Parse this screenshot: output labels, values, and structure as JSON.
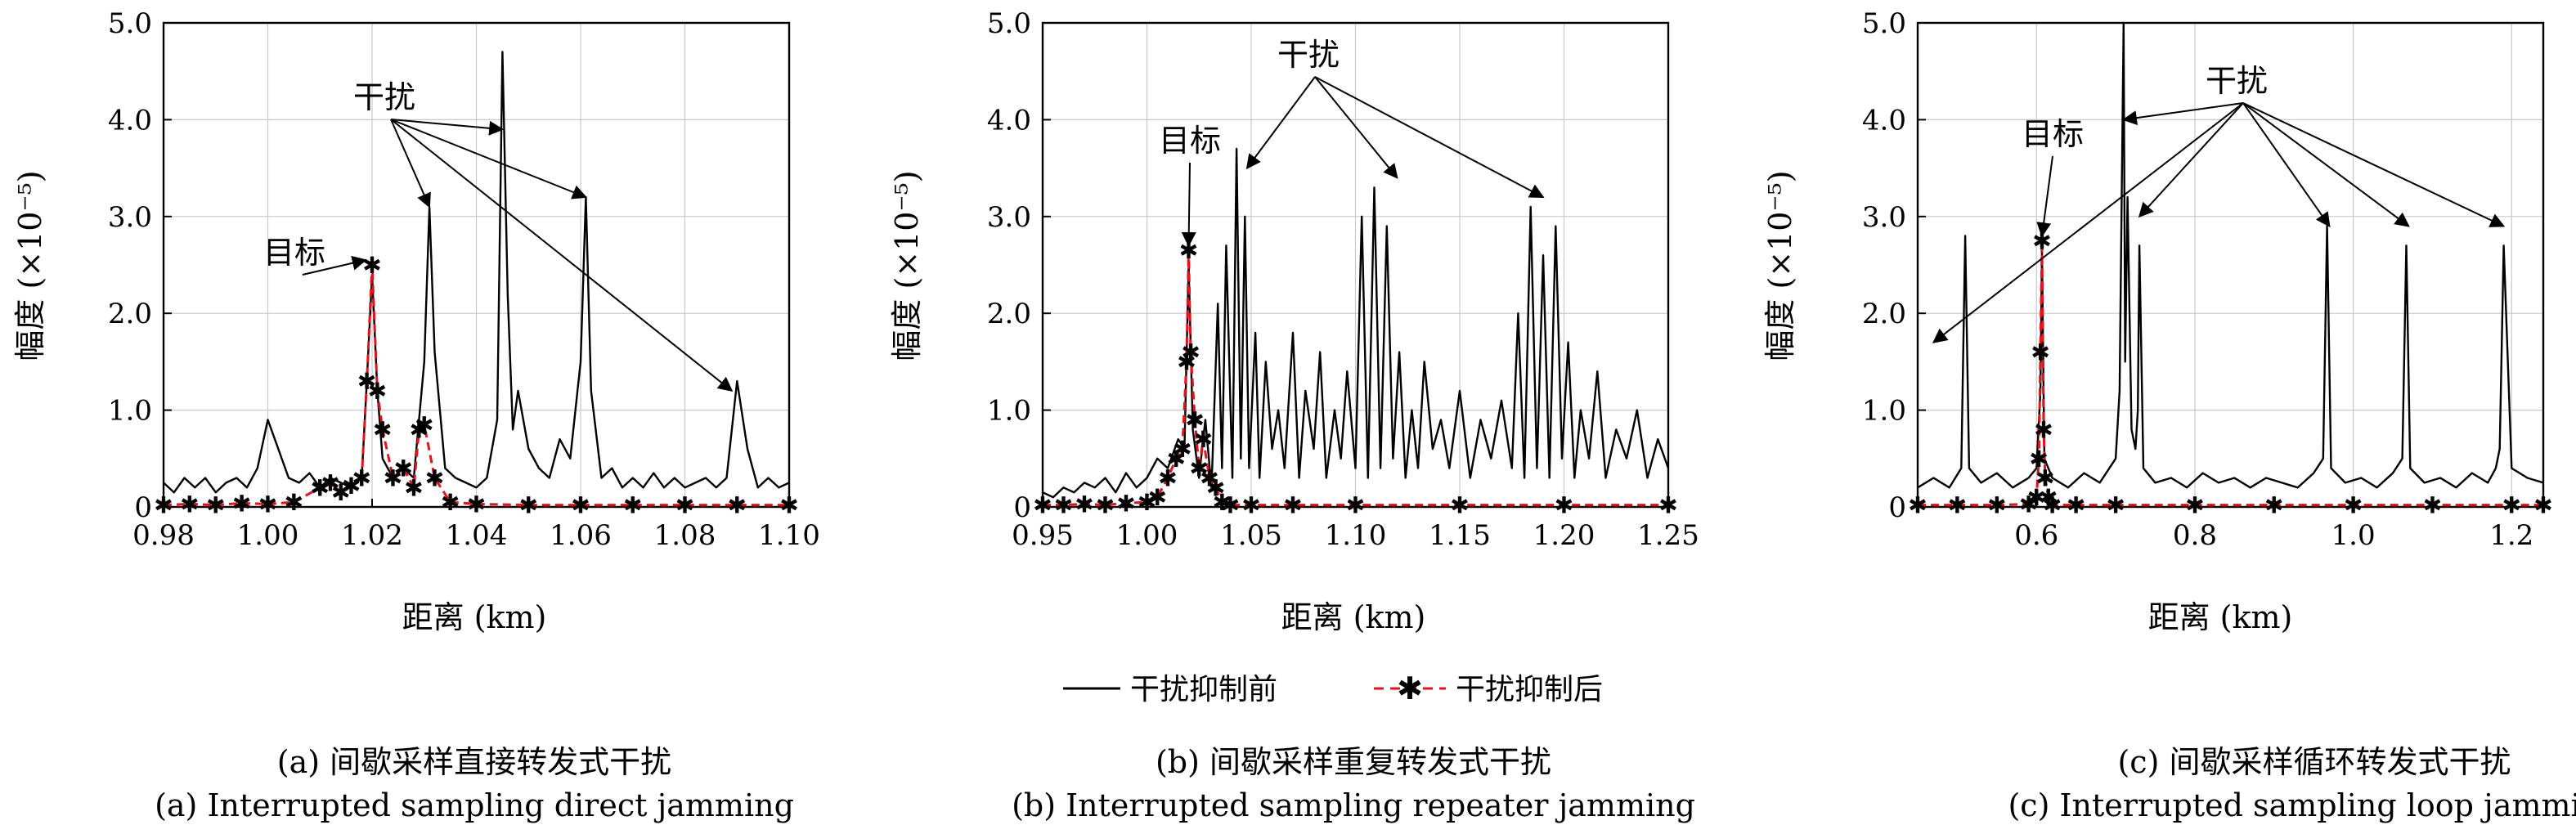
{
  "legend": {
    "before_label": "干扰抑制前",
    "after_label": "干扰抑制后"
  },
  "colors": {
    "before": "#000000",
    "after": "#e8101b",
    "after_marker": "#e8101b"
  },
  "chart_data": [
    {
      "type": "line",
      "panel": "a",
      "caption_cn": "(a) 间歇采样直接转发式干扰",
      "caption_en": "(a) Interrupted sampling direct jamming",
      "xlabel": "距离 (km)",
      "ylabel": "幅度 (×10⁻⁵)",
      "xlim": [
        0.98,
        1.1
      ],
      "ylim": [
        0,
        5.0
      ],
      "xticks": [
        0.98,
        1.0,
        1.02,
        1.04,
        1.06,
        1.08,
        1.1
      ],
      "xtick_labels": [
        "0.98",
        "1.00",
        "1.02",
        "1.04",
        "1.06",
        "1.08",
        "1.10"
      ],
      "yticks": [
        0,
        1.0,
        2.0,
        3.0,
        4.0,
        5.0
      ],
      "ytick_labels": [
        "0",
        "1.0",
        "2.0",
        "3.0",
        "4.0",
        "5.0"
      ],
      "grid": true,
      "annotations": [
        {
          "text": "目标",
          "points_to": [
            1.02,
            2.5
          ]
        },
        {
          "text": "干扰",
          "points_to": [
            [
              1.031,
              3.1
            ],
            [
              1.045,
              3.9
            ],
            [
              1.061,
              3.2
            ],
            [
              1.089,
              1.2
            ]
          ]
        }
      ],
      "series": [
        {
          "name": "干扰抑制前",
          "x": [
            0.98,
            0.982,
            0.984,
            0.986,
            0.988,
            0.99,
            0.992,
            0.994,
            0.996,
            0.998,
            1.0,
            1.002,
            1.004,
            1.006,
            1.008,
            1.01,
            1.012,
            1.014,
            1.016,
            1.018,
            1.019,
            1.02,
            1.021,
            1.022,
            1.024,
            1.026,
            1.028,
            1.03,
            1.031,
            1.032,
            1.034,
            1.036,
            1.038,
            1.04,
            1.042,
            1.044,
            1.045,
            1.046,
            1.047,
            1.048,
            1.05,
            1.052,
            1.054,
            1.056,
            1.058,
            1.06,
            1.061,
            1.062,
            1.064,
            1.066,
            1.068,
            1.07,
            1.072,
            1.074,
            1.076,
            1.078,
            1.08,
            1.082,
            1.084,
            1.086,
            1.088,
            1.09,
            1.092,
            1.094,
            1.096,
            1.098,
            1.1
          ],
          "y": [
            0.25,
            0.15,
            0.3,
            0.2,
            0.3,
            0.15,
            0.25,
            0.3,
            0.2,
            0.4,
            0.9,
            0.6,
            0.3,
            0.25,
            0.35,
            0.2,
            0.3,
            0.25,
            0.2,
            0.3,
            1.3,
            2.4,
            1.2,
            0.5,
            0.3,
            0.4,
            0.3,
            1.5,
            3.1,
            1.6,
            0.4,
            0.3,
            0.25,
            0.2,
            0.3,
            0.9,
            4.7,
            2.2,
            0.8,
            1.2,
            0.6,
            0.4,
            0.3,
            0.7,
            0.5,
            1.5,
            3.2,
            1.2,
            0.3,
            0.4,
            0.2,
            0.3,
            0.2,
            0.35,
            0.2,
            0.3,
            0.2,
            0.25,
            0.3,
            0.2,
            0.3,
            1.3,
            0.6,
            0.2,
            0.3,
            0.2,
            0.25
          ]
        },
        {
          "name": "干扰抑制后",
          "x": [
            0.98,
            0.985,
            0.99,
            0.995,
            1.0,
            1.005,
            1.01,
            1.012,
            1.014,
            1.016,
            1.018,
            1.019,
            1.02,
            1.021,
            1.022,
            1.024,
            1.026,
            1.028,
            1.029,
            1.03,
            1.032,
            1.035,
            1.04,
            1.05,
            1.06,
            1.07,
            1.08,
            1.09,
            1.1
          ],
          "y": [
            0.02,
            0.03,
            0.02,
            0.04,
            0.03,
            0.05,
            0.2,
            0.25,
            0.15,
            0.22,
            0.3,
            1.3,
            2.5,
            1.2,
            0.8,
            0.3,
            0.4,
            0.2,
            0.8,
            0.85,
            0.3,
            0.05,
            0.03,
            0.02,
            0.02,
            0.02,
            0.02,
            0.02,
            0.02
          ]
        }
      ]
    },
    {
      "type": "line",
      "panel": "b",
      "caption_cn": "(b) 间歇采样重复转发式干扰",
      "caption_en": "(b) Interrupted sampling repeater jamming",
      "xlabel": "距离 (km)",
      "ylabel": "幅度 (×10⁻⁵)",
      "xlim": [
        0.95,
        1.25
      ],
      "ylim": [
        0,
        5.0
      ],
      "xticks": [
        0.95,
        1.0,
        1.05,
        1.1,
        1.15,
        1.2,
        1.25
      ],
      "xtick_labels": [
        "0.95",
        "1.00",
        "1.05",
        "1.10",
        "1.15",
        "1.20",
        "1.25"
      ],
      "yticks": [
        0,
        1.0,
        2.0,
        3.0,
        4.0,
        5.0
      ],
      "ytick_labels": [
        "0",
        "1.0",
        "2.0",
        "3.0",
        "4.0",
        "5.0"
      ],
      "grid": true,
      "annotations": [
        {
          "text": "目标",
          "points_to": [
            1.02,
            2.65
          ]
        },
        {
          "text": "干扰",
          "points_to": [
            [
              1.048,
              3.5
            ],
            [
              1.12,
              3.4
            ],
            [
              1.19,
              3.2
            ]
          ]
        }
      ],
      "series": [
        {
          "name": "干扰抑制前",
          "x": [
            0.95,
            0.955,
            0.96,
            0.965,
            0.97,
            0.975,
            0.98,
            0.985,
            0.99,
            0.995,
            1.0,
            1.005,
            1.01,
            1.015,
            1.018,
            1.02,
            1.022,
            1.025,
            1.028,
            1.031,
            1.034,
            1.036,
            1.038,
            1.041,
            1.043,
            1.045,
            1.047,
            1.049,
            1.052,
            1.054,
            1.057,
            1.06,
            1.063,
            1.066,
            1.07,
            1.073,
            1.076,
            1.08,
            1.083,
            1.086,
            1.09,
            1.093,
            1.096,
            1.1,
            1.103,
            1.106,
            1.109,
            1.112,
            1.115,
            1.118,
            1.121,
            1.124,
            1.127,
            1.13,
            1.133,
            1.137,
            1.141,
            1.145,
            1.15,
            1.155,
            1.16,
            1.165,
            1.17,
            1.175,
            1.178,
            1.181,
            1.184,
            1.187,
            1.19,
            1.193,
            1.196,
            1.199,
            1.202,
            1.205,
            1.208,
            1.212,
            1.216,
            1.22,
            1.225,
            1.23,
            1.235,
            1.24,
            1.245,
            1.25
          ],
          "y": [
            0.15,
            0.1,
            0.2,
            0.15,
            0.25,
            0.2,
            0.3,
            0.15,
            0.35,
            0.2,
            0.3,
            0.5,
            0.4,
            0.7,
            0.6,
            2.5,
            0.8,
            0.3,
            0.9,
            0.2,
            2.1,
            0.4,
            2.7,
            0.3,
            3.7,
            0.5,
            3.0,
            0.4,
            1.8,
            0.3,
            1.5,
            0.6,
            1.0,
            0.4,
            1.8,
            0.3,
            1.2,
            0.6,
            1.6,
            0.3,
            1.0,
            0.5,
            1.4,
            0.4,
            3.0,
            0.3,
            3.3,
            0.4,
            2.9,
            0.5,
            1.6,
            0.3,
            1.0,
            0.4,
            1.5,
            0.6,
            0.9,
            0.4,
            1.2,
            0.3,
            0.9,
            0.5,
            1.1,
            0.4,
            2.0,
            0.3,
            3.1,
            0.4,
            2.6,
            0.3,
            2.9,
            0.5,
            1.7,
            0.3,
            1.0,
            0.5,
            1.4,
            0.3,
            0.8,
            0.5,
            1.0,
            0.3,
            0.7,
            0.4
          ]
        },
        {
          "name": "干扰抑制后",
          "x": [
            0.95,
            0.96,
            0.97,
            0.98,
            0.99,
            1.0,
            1.005,
            1.01,
            1.014,
            1.017,
            1.019,
            1.02,
            1.021,
            1.023,
            1.025,
            1.027,
            1.03,
            1.033,
            1.036,
            1.04,
            1.05,
            1.07,
            1.1,
            1.15,
            1.2,
            1.25
          ],
          "y": [
            0.02,
            0.02,
            0.03,
            0.02,
            0.04,
            0.05,
            0.1,
            0.3,
            0.5,
            0.6,
            1.5,
            2.65,
            1.6,
            0.9,
            0.4,
            0.7,
            0.3,
            0.2,
            0.05,
            0.02,
            0.02,
            0.02,
            0.02,
            0.02,
            0.02,
            0.02
          ]
        }
      ]
    },
    {
      "type": "line",
      "panel": "c",
      "caption_cn": "(c) 间歇采样循环转发式干扰",
      "caption_en": "(c) Interrupted sampling loop jamming",
      "xlabel": "距离 (km)",
      "ylabel": "幅度 (×10⁻⁵)",
      "xlim": [
        0.45,
        1.24
      ],
      "ylim": [
        0,
        5.0
      ],
      "xticks": [
        0.6,
        0.8,
        1.0,
        1.2
      ],
      "xtick_labels": [
        "0.6",
        "0.8",
        "1.0",
        "1.2"
      ],
      "yticks": [
        0,
        1.0,
        2.0,
        3.0,
        4.0,
        5.0
      ],
      "ytick_labels": [
        "0",
        "1.0",
        "2.0",
        "3.0",
        "4.0",
        "5.0"
      ],
      "grid": true,
      "annotations": [
        {
          "text": "目标",
          "points_to": [
            0.607,
            2.75
          ]
        },
        {
          "text": "干扰",
          "points_to": [
            [
              0.47,
              1.7
            ],
            [
              0.71,
              4.0
            ],
            [
              0.73,
              3.0
            ],
            [
              0.97,
              2.9
            ],
            [
              1.07,
              2.9
            ],
            [
              1.19,
              2.9
            ]
          ]
        }
      ],
      "series": [
        {
          "name": "干扰抑制前",
          "x": [
            0.45,
            0.47,
            0.49,
            0.505,
            0.51,
            0.515,
            0.53,
            0.55,
            0.57,
            0.59,
            0.6,
            0.605,
            0.607,
            0.61,
            0.62,
            0.64,
            0.66,
            0.68,
            0.7,
            0.705,
            0.71,
            0.712,
            0.715,
            0.72,
            0.725,
            0.728,
            0.73,
            0.735,
            0.75,
            0.77,
            0.79,
            0.81,
            0.83,
            0.85,
            0.87,
            0.89,
            0.91,
            0.93,
            0.95,
            0.962,
            0.967,
            0.972,
            0.99,
            1.01,
            1.03,
            1.05,
            1.062,
            1.067,
            1.072,
            1.09,
            1.11,
            1.13,
            1.15,
            1.17,
            1.18,
            1.185,
            1.19,
            1.2,
            1.22,
            1.24
          ],
          "y": [
            0.2,
            0.3,
            0.2,
            0.4,
            2.8,
            0.4,
            0.25,
            0.35,
            0.2,
            0.3,
            0.4,
            1.2,
            2.65,
            0.5,
            0.3,
            0.2,
            0.35,
            0.25,
            0.5,
            1.2,
            5.0,
            1.5,
            3.2,
            0.8,
            0.6,
            1.0,
            2.7,
            0.4,
            0.25,
            0.3,
            0.2,
            0.35,
            0.25,
            0.3,
            0.2,
            0.3,
            0.25,
            0.2,
            0.35,
            0.5,
            2.9,
            0.4,
            0.25,
            0.3,
            0.2,
            0.35,
            0.5,
            2.7,
            0.4,
            0.25,
            0.3,
            0.2,
            0.35,
            0.25,
            0.4,
            0.6,
            2.7,
            0.4,
            0.3,
            0.25
          ]
        },
        {
          "name": "干扰抑制后",
          "x": [
            0.45,
            0.5,
            0.55,
            0.59,
            0.6,
            0.603,
            0.605,
            0.607,
            0.609,
            0.611,
            0.615,
            0.62,
            0.65,
            0.7,
            0.8,
            0.9,
            1.0,
            1.1,
            1.2,
            1.24
          ],
          "y": [
            0.02,
            0.02,
            0.02,
            0.03,
            0.1,
            0.5,
            1.6,
            2.75,
            0.8,
            0.3,
            0.1,
            0.02,
            0.02,
            0.02,
            0.02,
            0.02,
            0.02,
            0.02,
            0.02,
            0.02
          ]
        }
      ]
    }
  ]
}
